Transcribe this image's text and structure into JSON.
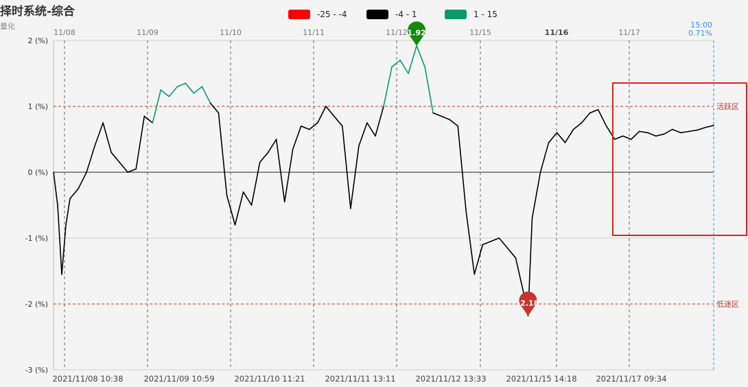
{
  "title": "择时系统-综合",
  "subtitle": "量化",
  "legend": [
    {
      "label": "-25 - -4",
      "color": "#ff0000"
    },
    {
      "label": "-4 - 1",
      "color": "#000000"
    },
    {
      "label": "1 - 15",
      "color": "#0a9b6b"
    }
  ],
  "end_label": {
    "time": "15:00",
    "value": "0.71%"
  },
  "markers": {
    "max": {
      "value": "1.92",
      "color": "#14890e"
    },
    "min": {
      "value": "-2.18",
      "color": "#c8352c"
    }
  },
  "zones": {
    "active": "活跃区",
    "dull": "低迷区"
  },
  "chart_data": {
    "type": "line",
    "title": "择时系统-综合",
    "ylim": [
      -3,
      2
    ],
    "y_ticks": [
      "2 (%)",
      "1 (%)",
      "0 (%)",
      "-1 (%)",
      "-2 (%)",
      "-3 (%)"
    ],
    "y_tick_values": [
      2,
      1,
      0,
      -1,
      -2,
      -3
    ],
    "reference_lines": [
      {
        "value": 1,
        "label": "活跃区",
        "color": "#c8352c"
      },
      {
        "value": -2,
        "label": "低迷区",
        "color": "#c8352c"
      }
    ],
    "top_date_labels": [
      "11/08",
      "11/09",
      "11/10",
      "11/11",
      "11/12",
      "11/15",
      "11/16",
      "11/17"
    ],
    "bottom_time_labels": [
      "2021/11/08 10:38",
      "2021/11/09 10:59",
      "2021/11/10 11:21",
      "2021/11/11 13:11",
      "2021/11/12 13:33",
      "2021/11/15 14:18",
      "2021/11/17 09:34"
    ],
    "color_bands": [
      {
        "range": [
          -25,
          -4
        ],
        "color": "#ff0000"
      },
      {
        "range": [
          -4,
          1
        ],
        "color": "#000000"
      },
      {
        "range": [
          1,
          15
        ],
        "color": "#0a9b6b"
      }
    ],
    "x_range": [
      0,
      80
    ],
    "x": [
      0,
      0.5,
      1,
      1.5,
      2,
      3,
      4,
      5,
      6,
      7,
      8,
      9,
      10,
      11,
      12,
      13,
      14,
      15,
      16,
      17,
      18,
      19,
      20,
      21,
      22,
      23,
      24,
      25,
      26,
      27,
      28,
      29,
      30,
      31,
      32,
      33,
      34,
      35,
      36,
      37,
      38,
      39,
      40,
      41,
      42,
      43,
      44,
      45,
      46,
      47,
      48,
      49,
      50,
      51,
      52,
      53,
      54,
      55,
      56,
      57,
      57.5,
      58,
      59,
      60,
      61,
      62,
      63,
      64,
      65,
      66,
      67,
      68,
      69,
      70,
      71,
      72,
      73,
      74,
      75,
      76,
      77,
      78,
      79,
      80
    ],
    "values": [
      0,
      -0.5,
      -1.55,
      -0.8,
      -0.4,
      -0.25,
      0.0,
      0.4,
      0.75,
      0.3,
      0.15,
      0.0,
      0.05,
      0.85,
      0.75,
      1.25,
      1.15,
      1.3,
      1.35,
      1.2,
      1.3,
      1.05,
      0.9,
      -0.35,
      -0.8,
      -0.3,
      -0.5,
      0.15,
      0.3,
      0.5,
      -0.45,
      0.35,
      0.7,
      0.65,
      0.75,
      1.0,
      0.85,
      0.7,
      -0.55,
      0.4,
      0.75,
      0.55,
      1.0,
      1.6,
      1.7,
      1.5,
      1.92,
      1.6,
      0.9,
      0.85,
      0.8,
      0.7,
      -0.6,
      -1.55,
      -1.1,
      -1.05,
      -1.0,
      -1.15,
      -1.3,
      -1.85,
      -2.18,
      -0.7,
      0.0,
      0.45,
      0.6,
      0.45,
      0.65,
      0.75,
      0.9,
      0.95,
      0.7,
      0.5,
      0.55,
      0.5,
      0.62,
      0.6,
      0.55,
      0.58,
      0.65,
      0.6,
      0.62,
      0.64,
      0.68,
      0.71
    ]
  }
}
